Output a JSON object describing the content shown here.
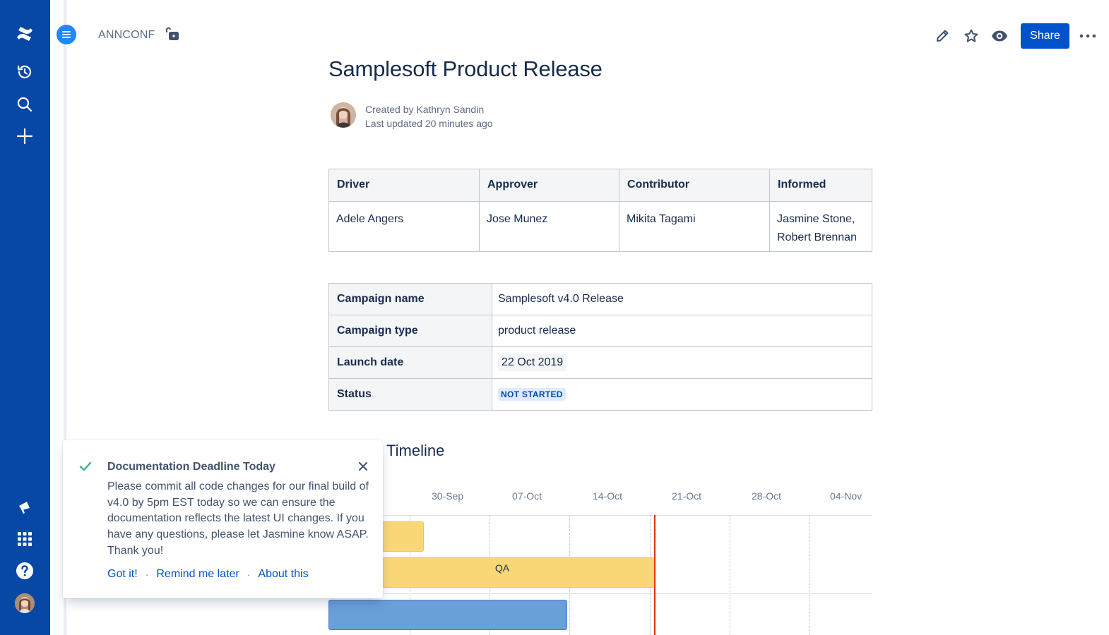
{
  "rail": {
    "items": [
      {
        "name": "confluence-logo-icon"
      },
      {
        "name": "recent-history-icon"
      },
      {
        "name": "search-icon"
      },
      {
        "name": "create-plus-icon"
      },
      {
        "name": "feedback-megaphone-icon"
      },
      {
        "name": "app-switcher-icon"
      },
      {
        "name": "help-icon"
      }
    ]
  },
  "header": {
    "space_key": "ANNCONF",
    "share_label": "Share"
  },
  "page": {
    "title": "Samplesoft Product Release",
    "created_by": "Created by Kathryn Sandin",
    "last_updated": "Last updated 20 minutes ago"
  },
  "daci": {
    "headers": [
      "Driver",
      "Approver",
      "Contributor",
      "Informed"
    ],
    "values": [
      "Adele Angers",
      "Jose Munez",
      "Mikita Tagami",
      "Jasmine Stone, Robert Brennan"
    ]
  },
  "campaign": {
    "rows": [
      {
        "label": "Campaign name",
        "value": "Samplesoft v4.0 Release"
      },
      {
        "label": "Campaign type",
        "value": "product release"
      },
      {
        "label": "Launch date",
        "value": "22 Oct 2019"
      },
      {
        "label": "Status",
        "value": "NOT STARTED"
      }
    ]
  },
  "timeline": {
    "heading": "Timeline",
    "ticks": [
      "30-Sep",
      "07-Oct",
      "14-Oct",
      "21-Oct",
      "28-Oct",
      "04-Nov"
    ],
    "bars": [
      {
        "label": "",
        "color": "#fad776"
      },
      {
        "label": "QA",
        "color": "#fad776"
      },
      {
        "label": "",
        "color": "#6a9fd8"
      }
    ],
    "today_color": "#de350b"
  },
  "flag": {
    "title": "Documentation Deadline Today",
    "body": "Please commit all code changes for our final build of v4.0 by 5pm EST today so we can ensure the documentation reflects the latest UI changes. If you have any questions, please let Jasmine know ASAP. Thank you!",
    "actions": [
      "Got it!",
      "Remind me later",
      "About this"
    ],
    "separator": "·"
  },
  "colors": {
    "rail": "#0747a6",
    "primary": "#0052cc",
    "success": "#36b37e"
  }
}
